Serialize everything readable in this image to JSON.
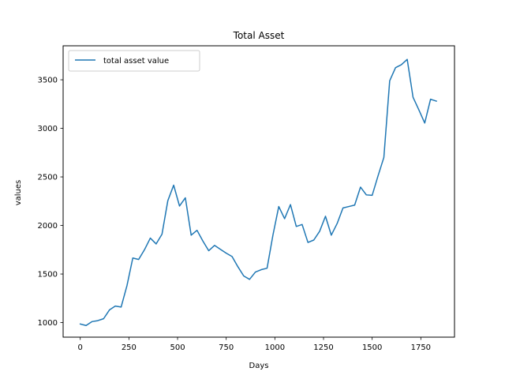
{
  "chart_data": {
    "type": "line",
    "title": "Total Asset",
    "xlabel": "Days",
    "ylabel": "values",
    "xlim": [
      -88,
      1923
    ],
    "ylim": [
      850,
      3850
    ],
    "xticks": [
      0,
      250,
      500,
      750,
      1000,
      1250,
      1500,
      1750
    ],
    "yticks": [
      1000,
      1500,
      2000,
      2500,
      3000,
      3500
    ],
    "grid": false,
    "legend_position": "upper left",
    "series": [
      {
        "name": "total asset value",
        "color": "#1f77b4",
        "x": [
          0,
          30,
          60,
          90,
          120,
          150,
          180,
          210,
          240,
          270,
          300,
          330,
          360,
          390,
          420,
          450,
          480,
          510,
          540,
          570,
          600,
          630,
          660,
          690,
          720,
          750,
          780,
          810,
          840,
          870,
          900,
          930,
          960,
          990,
          1020,
          1050,
          1080,
          1110,
          1140,
          1170,
          1200,
          1230,
          1260,
          1290,
          1320,
          1350,
          1380,
          1410,
          1440,
          1470,
          1500,
          1530,
          1560,
          1590,
          1620,
          1650,
          1680,
          1710,
          1740,
          1770,
          1800,
          1830
        ],
        "values": [
          985,
          970,
          1010,
          1020,
          1040,
          1130,
          1170,
          1160,
          1380,
          1665,
          1650,
          1750,
          1870,
          1810,
          1910,
          2255,
          2415,
          2200,
          2285,
          1900,
          1950,
          1840,
          1740,
          1795,
          1755,
          1715,
          1680,
          1575,
          1480,
          1445,
          1520,
          1545,
          1560,
          1900,
          2195,
          2070,
          2215,
          1990,
          2010,
          1825,
          1850,
          1940,
          2095,
          1900,
          2020,
          2180,
          2195,
          2210,
          2395,
          2315,
          2310,
          2510,
          2700,
          3490,
          3625,
          3655,
          3710,
          3320,
          3190,
          3055,
          3300,
          3280
        ]
      }
    ]
  }
}
